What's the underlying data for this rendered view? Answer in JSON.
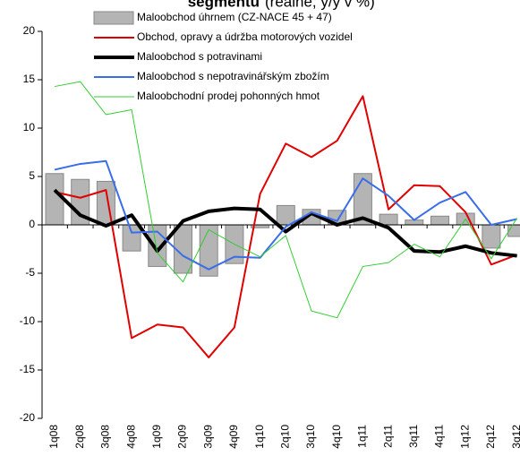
{
  "chart_data": {
    "type": "bar-line",
    "title": "segmentu",
    "subtitle": "(reálně, y/y v %)",
    "categories": [
      "1q08",
      "2q08",
      "3q08",
      "4q08",
      "1q09",
      "2q09",
      "3q09",
      "4q09",
      "1q10",
      "2q10",
      "3q10",
      "4q10",
      "1q11",
      "2q11",
      "3q11",
      "4q11",
      "1q12",
      "2q12",
      "3q12"
    ],
    "series": [
      {
        "name": "Maloobchod úhrnem (CZ-NACE 45 + 47)",
        "kind": "bar",
        "color": "#b4b4b4",
        "values": [
          5.3,
          4.7,
          4.5,
          -2.7,
          -4.3,
          -5.0,
          -5.3,
          -4.0,
          -0.3,
          2.0,
          1.6,
          1.5,
          5.3,
          1.1,
          0.5,
          0.9,
          1.2,
          -2.4,
          -1.2
        ]
      },
      {
        "name": "Obchod, opravy a údržba motorových vozidel",
        "kind": "line",
        "color": "#e00000",
        "values": [
          3.4,
          2.8,
          3.6,
          -11.7,
          -10.3,
          -10.6,
          -13.7,
          -10.6,
          3.2,
          8.4,
          7.0,
          8.7,
          13.3,
          1.6,
          4.1,
          4.0,
          1.3,
          -4.1,
          -3.1
        ]
      },
      {
        "name": "Maloobchod s potravinami",
        "kind": "line",
        "color": "#000000",
        "values": [
          3.6,
          1.0,
          -0.1,
          1.0,
          -2.7,
          0.4,
          1.4,
          1.7,
          1.6,
          -0.7,
          1.2,
          0.0,
          0.7,
          -0.3,
          -2.7,
          -2.8,
          -2.2,
          -2.9,
          -3.2
        ]
      },
      {
        "name": "Maloobchod s nepotravinářským zbožím",
        "kind": "line",
        "color": "#3a6ee8",
        "values": [
          5.7,
          6.3,
          6.6,
          -0.8,
          -0.7,
          -3.2,
          -4.6,
          -3.3,
          -3.4,
          -0.2,
          1.3,
          0.4,
          4.8,
          3.0,
          0.5,
          2.3,
          3.4,
          0.0,
          0.6
        ]
      },
      {
        "name": "Maloobchodní prodej pohonných hmot",
        "kind": "line",
        "color": "#33cc33",
        "values": [
          14.3,
          14.8,
          11.4,
          11.9,
          -2.9,
          -5.9,
          -0.5,
          -2.0,
          -3.3,
          -1.1,
          -8.9,
          -9.6,
          -4.3,
          -3.9,
          -2.0,
          -3.3,
          0.6,
          -3.5,
          0.7
        ]
      }
    ],
    "ylim": [
      -20,
      20
    ],
    "yticks": [
      -20,
      -15,
      -10,
      -5,
      0,
      5,
      10,
      15,
      20
    ]
  }
}
